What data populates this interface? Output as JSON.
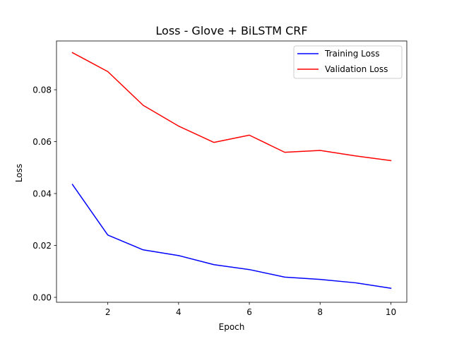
{
  "chart_data": {
    "type": "line",
    "title": "Loss - Glove + BiLSTM CRF",
    "xlabel": "Epoch",
    "ylabel": "Loss",
    "x": [
      1,
      2,
      3,
      4,
      5,
      6,
      7,
      8,
      9,
      10
    ],
    "series": [
      {
        "name": "Training Loss",
        "color": "#0000ff",
        "values": [
          0.0435,
          0.024,
          0.0183,
          0.0161,
          0.0126,
          0.0107,
          0.0078,
          0.0069,
          0.0056,
          0.0035
        ]
      },
      {
        "name": "Validation Loss",
        "color": "#ff0000",
        "values": [
          0.0943,
          0.087,
          0.074,
          0.066,
          0.0597,
          0.0625,
          0.0559,
          0.0566,
          0.0545,
          0.0527
        ]
      }
    ],
    "xlim": [
      0.55,
      10.45
    ],
    "ylim": [
      -0.0019,
      0.0988
    ],
    "xticks": [
      2,
      4,
      6,
      8,
      10
    ],
    "xtick_labels": [
      "2",
      "4",
      "6",
      "8",
      "10"
    ],
    "yticks": [
      0.0,
      0.02,
      0.04,
      0.06,
      0.08
    ],
    "ytick_labels": [
      "0.00",
      "0.02",
      "0.04",
      "0.06",
      "0.08"
    ],
    "grid": false,
    "legend_position": "top-right"
  }
}
